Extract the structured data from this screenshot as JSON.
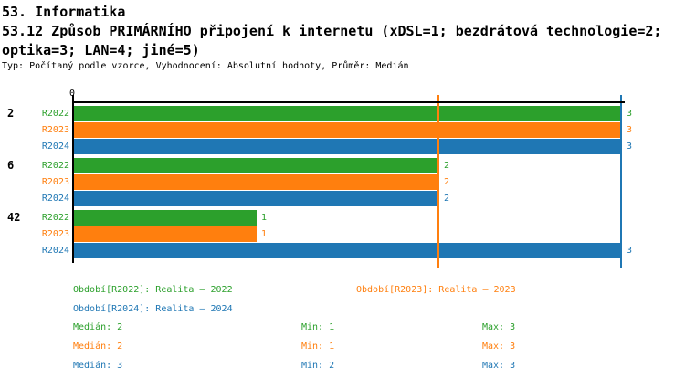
{
  "header": {
    "title": "53. Informatika",
    "subtitle": "53.12 Způsob PRIMÁRNÍHO připojení k internetu (xDSL=1; bezdrátová technologie=2; optika=3; LAN=4; jiné=5)",
    "meta": "Typ: Počítaný podle vzorce, Vyhodnocení: Absolutní hodnoty, Průměr: Medián"
  },
  "colors": {
    "green": "#2ca02c",
    "orange": "#ff7f0e",
    "blue": "#1f77b4",
    "axis": "#000000",
    "background": "#ffffff"
  },
  "chart_data": {
    "type": "bar",
    "orientation": "horizontal",
    "title": "",
    "xlabel": "",
    "ylabel": "",
    "xlim": [
      0,
      3.35
    ],
    "origin_tick_label": "0",
    "grid": false,
    "legend_position": "bottom",
    "categories": [
      "2",
      "6",
      "42"
    ],
    "series": [
      {
        "name": "R2022",
        "color": "#2ca02c",
        "values": [
          3,
          2,
          1
        ]
      },
      {
        "name": "R2023",
        "color": "#ff7f0e",
        "values": [
          3,
          2,
          1
        ]
      },
      {
        "name": "R2024",
        "color": "#1f77b4",
        "values": [
          3,
          2,
          3
        ]
      }
    ],
    "value_labels": [
      [
        "3",
        "3",
        "3"
      ],
      [
        "2",
        "2",
        "2"
      ],
      [
        "1",
        "1",
        "3"
      ]
    ],
    "median_lines": [
      {
        "series": "R2023",
        "value": 2,
        "color": "#ff7f0e"
      },
      {
        "series": "R2024",
        "value": 3,
        "color": "#1f77b4"
      }
    ],
    "stats": [
      {
        "series": "R2022",
        "median": 2,
        "min": 1,
        "max": 3
      },
      {
        "series": "R2023",
        "median": 2,
        "min": 1,
        "max": 3
      },
      {
        "series": "R2024",
        "median": 3,
        "min": 2,
        "max": 3
      }
    ]
  },
  "legend": [
    {
      "label": "Období[R2022]: Realita – 2022",
      "color": "#2ca02c"
    },
    {
      "label": "Období[R2023]: Realita – 2023",
      "color": "#ff7f0e"
    },
    {
      "label": "Období[R2024]: Realita – 2024",
      "color": "#1f77b4"
    }
  ],
  "stats_rows": [
    {
      "median": "Medián: 2",
      "min": "Min: 1",
      "max": "Max: 3",
      "color": "#2ca02c"
    },
    {
      "median": "Medián: 2",
      "min": "Min: 1",
      "max": "Max: 3",
      "color": "#ff7f0e"
    },
    {
      "median": "Medián: 3",
      "min": "Min: 2",
      "max": "Max: 3",
      "color": "#1f77b4"
    }
  ]
}
